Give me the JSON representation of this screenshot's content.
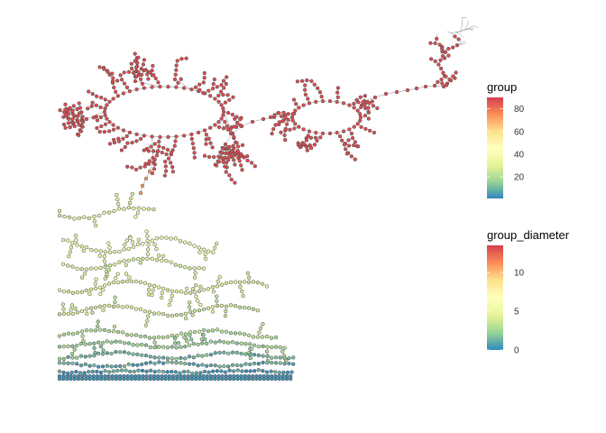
{
  "chart_data": {
    "type": "network",
    "palette": [
      "#3288BD",
      "#99D594",
      "#E6F598",
      "#FFFFBF",
      "#FEE08B",
      "#FC8D59",
      "#D53E4F"
    ],
    "legends": [
      {
        "title": "group",
        "range": [
          1,
          90
        ],
        "ticks": [
          {
            "value": 20,
            "label": "20"
          },
          {
            "value": 40,
            "label": "40"
          },
          {
            "value": 60,
            "label": "60"
          },
          {
            "value": 80,
            "label": "80"
          }
        ]
      },
      {
        "title": "group_diameter",
        "range": [
          0,
          13.5
        ],
        "ticks": [
          {
            "value": 0,
            "label": "0"
          },
          {
            "value": 5,
            "label": "5"
          },
          {
            "value": 10,
            "label": "10"
          }
        ]
      }
    ]
  }
}
